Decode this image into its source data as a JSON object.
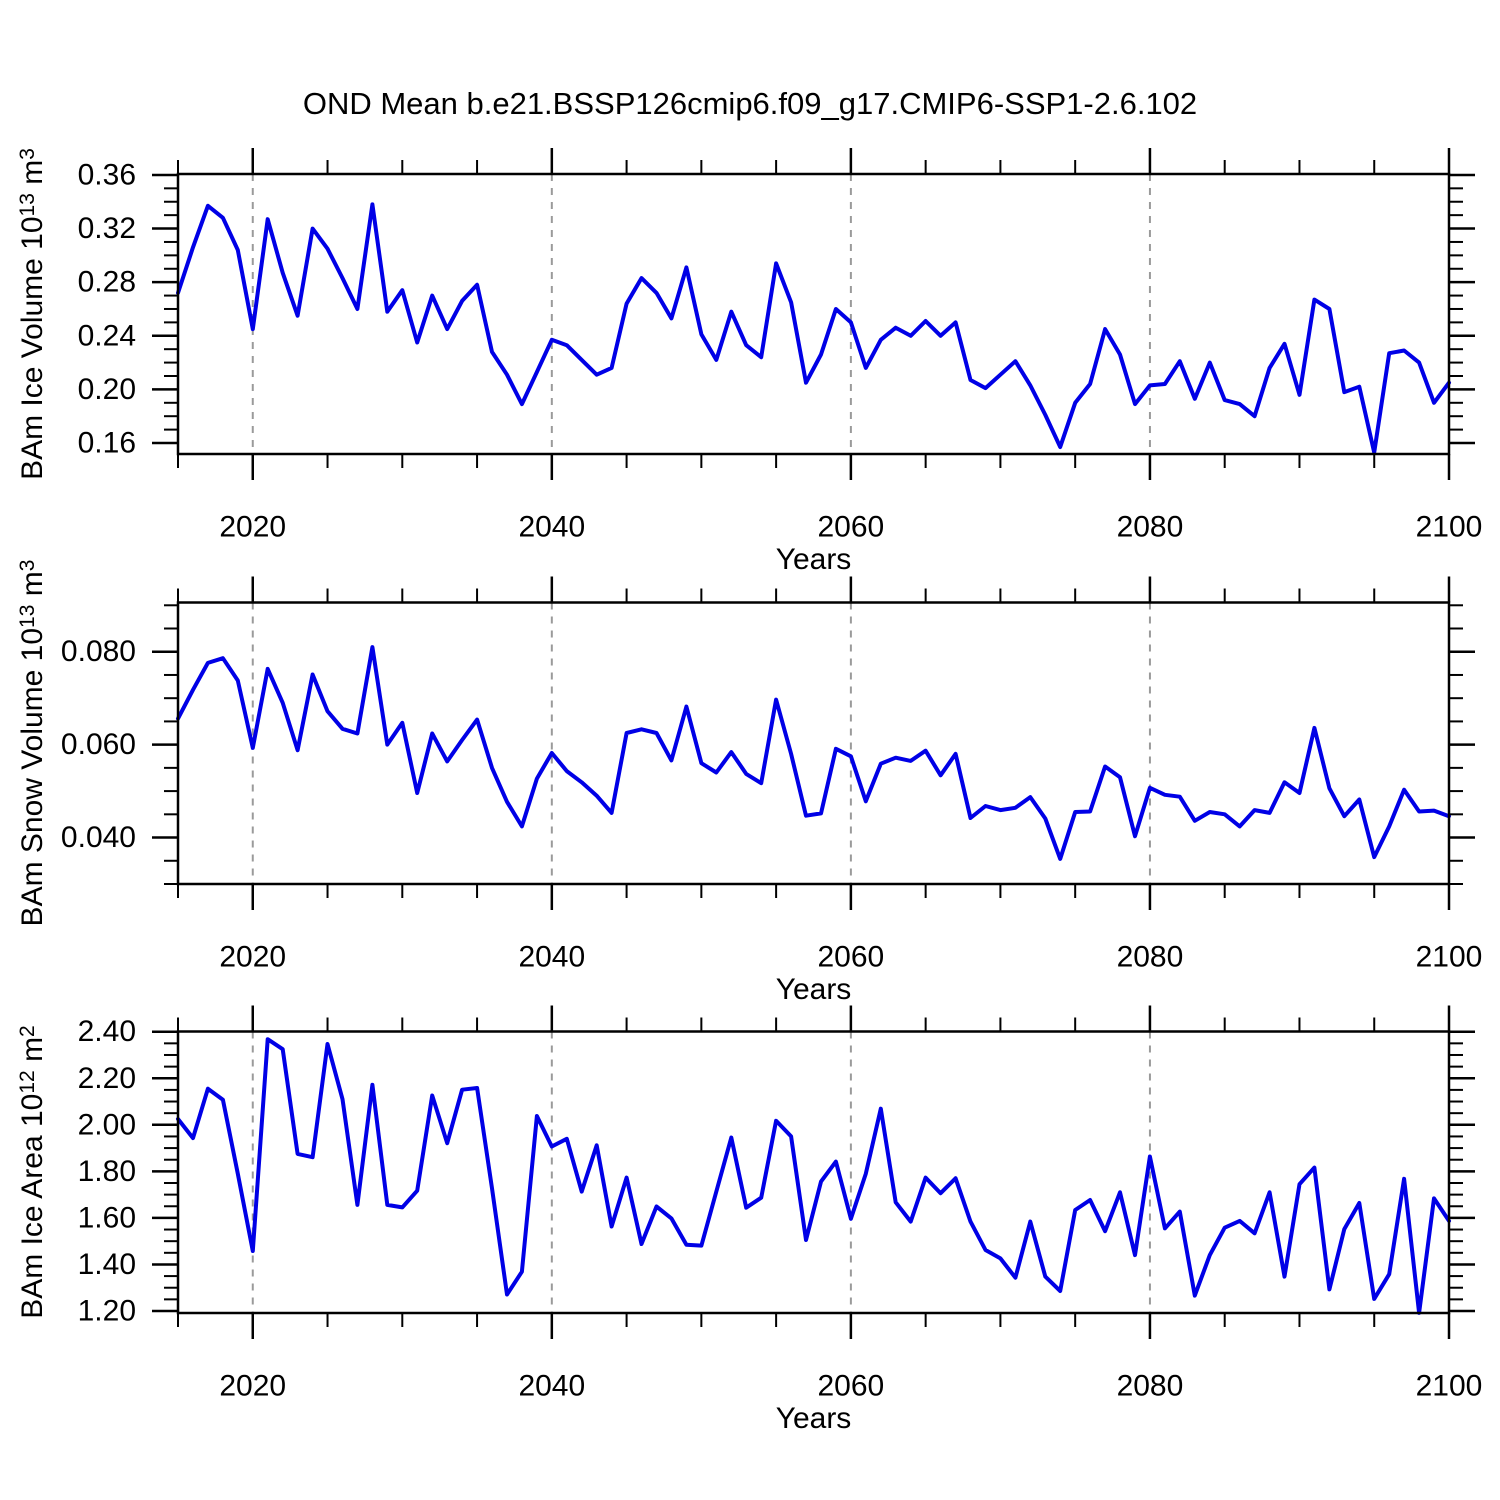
{
  "title": "OND Mean b.e21.BSSP126cmip6.f09_g17.CMIP6-SSP1-2.6.102",
  "colors": {
    "line": "#0000E6",
    "frame": "#000000",
    "grid": "#9A9A9A",
    "background": "#FFFFFF"
  },
  "chart_data": [
    {
      "type": "line",
      "series_name": "BAm Ice Volume",
      "ylabel": "BAm Ice Volume 10^13 m^3",
      "ylabel_parts": [
        [
          "BAm Ice Volume 10",
          0
        ],
        [
          "13",
          1
        ],
        [
          " m",
          0
        ],
        [
          "3",
          1
        ]
      ],
      "xlabel": "Years",
      "x_start": 2015,
      "x_end": 2100,
      "xlim": [
        2015,
        2100
      ],
      "ylim": [
        0.1518,
        0.3607
      ],
      "yticks": [
        0.16,
        0.2,
        0.24,
        0.28,
        0.32,
        0.36
      ],
      "ytick_labels": [
        "0.16",
        "0.20",
        "0.24",
        "0.28",
        "0.32",
        "0.36"
      ],
      "y_minor_step": 0.01,
      "xticks": [
        2020,
        2040,
        2060,
        2080,
        2100
      ],
      "xtick_labels": [
        "2020",
        "2040",
        "2060",
        "2080",
        "2100"
      ],
      "x_minor_step": 5,
      "grid_x": [
        2020,
        2040,
        2060,
        2080
      ],
      "grid_on": true,
      "legend": "none",
      "values": [
        0.272,
        0.306,
        0.337,
        0.328,
        0.304,
        0.245,
        0.327,
        0.287,
        0.255,
        0.32,
        0.305,
        0.283,
        0.26,
        0.338,
        0.258,
        0.274,
        0.235,
        0.27,
        0.245,
        0.266,
        0.278,
        0.228,
        0.211,
        0.189,
        0.213,
        0.237,
        0.233,
        0.222,
        0.211,
        0.216,
        0.264,
        0.283,
        0.272,
        0.253,
        0.291,
        0.241,
        0.222,
        0.258,
        0.233,
        0.224,
        0.294,
        0.265,
        0.205,
        0.226,
        0.26,
        0.25,
        0.216,
        0.237,
        0.246,
        0.24,
        0.251,
        0.24,
        0.25,
        0.207,
        0.201,
        0.211,
        0.221,
        0.203,
        0.181,
        0.157,
        0.19,
        0.204,
        0.245,
        0.226,
        0.189,
        0.203,
        0.204,
        0.221,
        0.193,
        0.22,
        0.192,
        0.189,
        0.18,
        0.216,
        0.234,
        0.196,
        0.267,
        0.26,
        0.198,
        0.202,
        0.153,
        0.227,
        0.229,
        0.22,
        0.19,
        0.205
      ]
    },
    {
      "type": "line",
      "series_name": "BAm Snow Volume",
      "ylabel": "BAm Snow Volume 10^13 m^3",
      "ylabel_parts": [
        [
          "BAm Snow Volume 10",
          0
        ],
        [
          "13",
          1
        ],
        [
          " m",
          0
        ],
        [
          "3",
          1
        ]
      ],
      "xlabel": "Years",
      "x_start": 2015,
      "x_end": 2100,
      "xlim": [
        2015,
        2100
      ],
      "ylim": [
        0.03,
        0.0906
      ],
      "yticks": [
        0.04,
        0.06,
        0.08
      ],
      "ytick_labels": [
        "0.040",
        "0.060",
        "0.080"
      ],
      "y_minor_step": 0.005,
      "xticks": [
        2020,
        2040,
        2060,
        2080,
        2100
      ],
      "xtick_labels": [
        "2020",
        "2040",
        "2060",
        "2080",
        "2100"
      ],
      "x_minor_step": 5,
      "grid_x": [
        2020,
        2040,
        2060,
        2080
      ],
      "grid_on": true,
      "legend": "none",
      "values": [
        0.0656,
        0.0718,
        0.0776,
        0.0786,
        0.0738,
        0.0593,
        0.0763,
        0.069,
        0.0588,
        0.0751,
        0.0672,
        0.0634,
        0.0624,
        0.081,
        0.06,
        0.0647,
        0.0496,
        0.0624,
        0.0564,
        0.061,
        0.0654,
        0.055,
        0.0477,
        0.0424,
        0.0527,
        0.0582,
        0.0543,
        0.0519,
        0.049,
        0.0453,
        0.0625,
        0.0633,
        0.0625,
        0.0566,
        0.0682,
        0.056,
        0.054,
        0.0584,
        0.0537,
        0.0517,
        0.0697,
        0.058,
        0.0447,
        0.0452,
        0.0591,
        0.0575,
        0.0478,
        0.0559,
        0.0572,
        0.0565,
        0.0587,
        0.0534,
        0.058,
        0.0442,
        0.0468,
        0.0459,
        0.0464,
        0.0487,
        0.0441,
        0.0354,
        0.0455,
        0.0456,
        0.0553,
        0.053,
        0.0403,
        0.0507,
        0.0492,
        0.0488,
        0.0436,
        0.0455,
        0.045,
        0.0424,
        0.0459,
        0.0453,
        0.0519,
        0.0496,
        0.0636,
        0.0506,
        0.0446,
        0.0482,
        0.0358,
        0.0424,
        0.0503,
        0.0456,
        0.0458,
        0.0446
      ]
    },
    {
      "type": "line",
      "series_name": "BAm Ice Area",
      "ylabel": "BAm Ice Area 10^12 m^2",
      "ylabel_parts": [
        [
          "BAm Ice Area 10",
          0
        ],
        [
          "12",
          1
        ],
        [
          " m",
          0
        ],
        [
          "2",
          1
        ]
      ],
      "xlabel": "Years",
      "x_start": 2015,
      "x_end": 2100,
      "xlim": [
        2015,
        2100
      ],
      "ylim": [
        1.1914,
        2.4009
      ],
      "yticks": [
        1.2,
        1.4,
        1.6,
        1.8,
        2.0,
        2.2,
        2.4
      ],
      "ytick_labels": [
        "1.20",
        "1.40",
        "1.60",
        "1.80",
        "2.00",
        "2.20",
        "2.40"
      ],
      "y_minor_step": 0.05,
      "xticks": [
        2020,
        2040,
        2060,
        2080,
        2100
      ],
      "xtick_labels": [
        "2020",
        "2040",
        "2060",
        "2080",
        "2100"
      ],
      "x_minor_step": 5,
      "grid_x": [
        2020,
        2040,
        2060,
        2080
      ],
      "grid_on": true,
      "legend": "none",
      "values": [
        2.025,
        1.943,
        2.155,
        2.108,
        1.79,
        1.458,
        2.368,
        2.325,
        1.875,
        1.861,
        2.347,
        2.11,
        1.656,
        2.172,
        1.656,
        1.645,
        1.717,
        2.126,
        1.921,
        2.151,
        2.158,
        1.727,
        1.271,
        1.369,
        2.038,
        1.907,
        1.94,
        1.713,
        1.912,
        1.563,
        1.773,
        1.488,
        1.649,
        1.598,
        1.485,
        1.481,
        1.713,
        1.945,
        1.644,
        1.687,
        2.017,
        1.95,
        1.505,
        1.756,
        1.842,
        1.596,
        1.79,
        2.069,
        1.667,
        1.584,
        1.773,
        1.706,
        1.77,
        1.584,
        1.462,
        1.426,
        1.343,
        1.584,
        1.348,
        1.286,
        1.634,
        1.677,
        1.543,
        1.71,
        1.44,
        1.864,
        1.555,
        1.627,
        1.266,
        1.44,
        1.558,
        1.587,
        1.534,
        1.71,
        1.348,
        1.745,
        1.816,
        1.293,
        1.552,
        1.664,
        1.252,
        1.358,
        1.768,
        1.192,
        1.684,
        1.587
      ]
    }
  ]
}
